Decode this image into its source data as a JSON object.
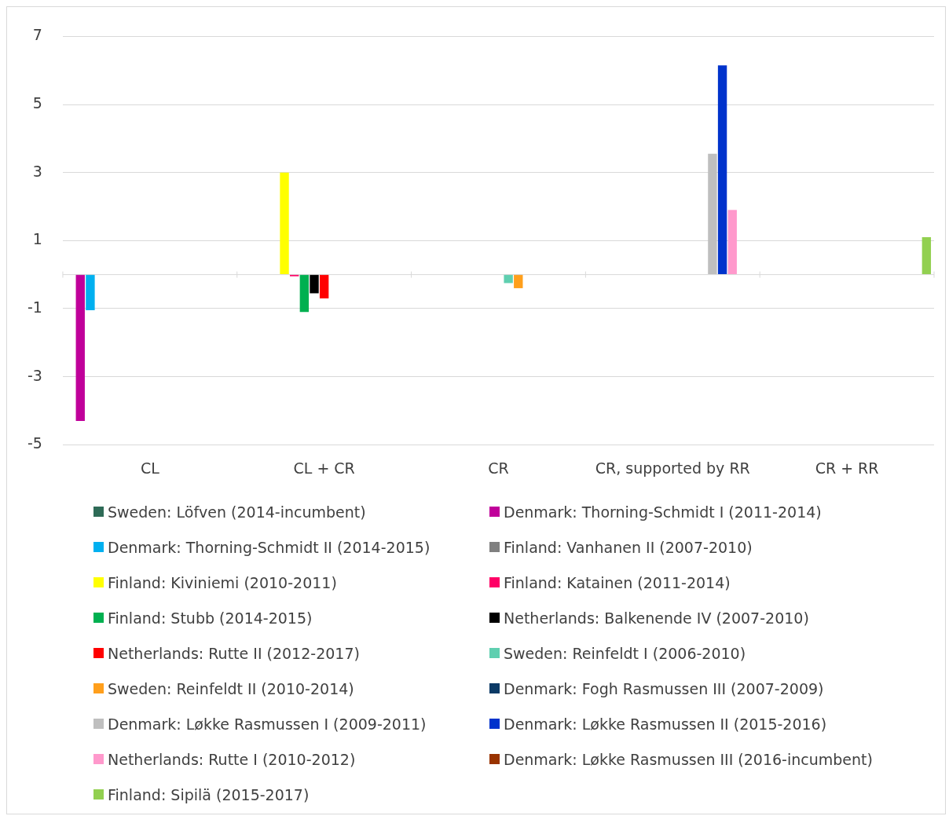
{
  "chart_data": {
    "type": "bar",
    "categories": [
      "CL",
      "CL + CR",
      "CR",
      "CR, supported by RR",
      "CR + RR"
    ],
    "ylim": [
      -5,
      7
    ],
    "yticks": [
      -5,
      -3,
      -1,
      1,
      3,
      5,
      7
    ],
    "grid": "y",
    "legend": "bottom",
    "series": [
      {
        "name": "Sweden: Löfven (2014-incumbent)",
        "color": "#2e6b57",
        "values": [
          null,
          null,
          null,
          null,
          null
        ]
      },
      {
        "name": "Denmark: Thorning-Schmidt I (2011-2014)",
        "color": "#c0009a",
        "values": [
          -4.3,
          null,
          null,
          null,
          null
        ]
      },
      {
        "name": "Denmark: Thorning-Schmidt II (2014-2015)",
        "color": "#00b0f0",
        "values": [
          -1.05,
          null,
          null,
          null,
          null
        ]
      },
      {
        "name": "Finland: Vanhanen II (2007-2010)",
        "color": "#808080",
        "values": [
          null,
          null,
          null,
          null,
          null
        ]
      },
      {
        "name": "Finland: Kiviniemi (2010-2011)",
        "color": "#ffff00",
        "values": [
          null,
          3,
          null,
          null,
          null
        ]
      },
      {
        "name": "Finland: Katainen (2011-2014)",
        "color": "#ff0066",
        "values": [
          null,
          -0.05,
          null,
          null,
          null
        ]
      },
      {
        "name": "Finland: Stubb (2014-2015)",
        "color": "#00b050",
        "values": [
          null,
          -1.1,
          null,
          null,
          null
        ]
      },
      {
        "name": "Netherlands: Balkenende IV (2007-2010)",
        "color": "#000000",
        "values": [
          null,
          -0.55,
          null,
          null,
          null
        ]
      },
      {
        "name": "Netherlands: Rutte II (2012-2017)",
        "color": "#ff0000",
        "values": [
          null,
          -0.7,
          null,
          null,
          null
        ]
      },
      {
        "name": "Sweden: Reinfeldt I (2006-2010)",
        "color": "#5fcfb0",
        "values": [
          null,
          null,
          -0.25,
          null,
          null
        ]
      },
      {
        "name": "Sweden: Reinfeldt II (2010-2014)",
        "color": "#ff9f1c",
        "values": [
          null,
          null,
          -0.4,
          null,
          null
        ]
      },
      {
        "name": "Denmark: Fogh Rasmussen III (2007-2009)",
        "color": "#0b3a66",
        "values": [
          null,
          null,
          null,
          null,
          null
        ]
      },
      {
        "name": "Denmark: Løkke Rasmussen I (2009-2011)",
        "color": "#bfbfbf",
        "values": [
          null,
          null,
          null,
          3.55,
          null
        ]
      },
      {
        "name": "Denmark: Løkke Rasmussen II (2015-2016)",
        "color": "#0033cc",
        "values": [
          null,
          null,
          null,
          6.15,
          null
        ]
      },
      {
        "name": "Netherlands: Rutte I (2010-2012)",
        "color": "#ff99cc",
        "values": [
          null,
          null,
          null,
          1.9,
          null
        ]
      },
      {
        "name": "Denmark: Løkke Rasmussen III (2016-incumbent)",
        "color": "#993300",
        "values": [
          null,
          null,
          null,
          null,
          null
        ]
      },
      {
        "name": "Finland: Sipilä (2015-2017)",
        "color": "#92d050",
        "values": [
          null,
          null,
          null,
          null,
          1.1
        ]
      }
    ]
  }
}
